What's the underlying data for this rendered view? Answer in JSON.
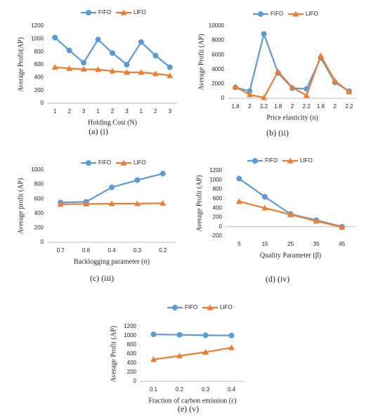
{
  "chart_data": [
    {
      "type": "line",
      "caption": "(a)  (i)",
      "x_label": "Holding Cost (N)",
      "y_label": "Average Profit(AP)",
      "categories": [
        "1",
        "2",
        "3",
        "1",
        "2",
        "3",
        "1",
        "2",
        "3"
      ],
      "series": [
        {
          "name": "FIFO",
          "color": "#5b9bd5",
          "marker": "circle",
          "values": [
            1020,
            820,
            630,
            990,
            780,
            600,
            950,
            740,
            560
          ]
        },
        {
          "name": "LIFO",
          "color": "#ed7d31",
          "marker": "triangle",
          "values": [
            560,
            540,
            530,
            525,
            500,
            480,
            480,
            460,
            430
          ]
        }
      ],
      "ylim": [
        0,
        1200
      ],
      "yticks": [
        0,
        200,
        400,
        600,
        800,
        1000,
        1200
      ],
      "grid": false
    },
    {
      "type": "line",
      "caption": "(b)  (ii)",
      "x_label": "Price elasticity (n)",
      "y_label": "Average Profit (AP)",
      "categories": [
        "1.8",
        "2",
        "2.2",
        "1.8",
        "2",
        "2.2",
        "1.8",
        "2",
        "2.2"
      ],
      "series": [
        {
          "name": "FIFO",
          "color": "#5b9bd5",
          "marker": "circle",
          "values": [
            1500,
            1000,
            8900,
            3500,
            1400,
            1300,
            5600,
            2200,
            1000
          ]
        },
        {
          "name": "LIFO",
          "color": "#ed7d31",
          "marker": "triangle",
          "values": [
            1600,
            500,
            100,
            3700,
            1500,
            400,
            5900,
            2400,
            900
          ]
        }
      ],
      "ylim": [
        0,
        10000
      ],
      "yticks": [
        0,
        2000,
        4000,
        6000,
        8000,
        10000
      ],
      "grid": false
    },
    {
      "type": "line",
      "caption": "(c)  (iii)",
      "x_label": "Backlogging parameter (σ)",
      "y_label": "Average profit (AP)",
      "categories": [
        "0.7",
        "0.6",
        "0.4",
        "0.3",
        "0.2"
      ],
      "series": [
        {
          "name": "FIFO",
          "color": "#5b9bd5",
          "marker": "circle",
          "values": [
            550,
            560,
            760,
            860,
            950
          ]
        },
        {
          "name": "LIFO",
          "color": "#ed7d31",
          "marker": "triangle",
          "values": [
            525,
            530,
            535,
            535,
            540
          ]
        }
      ],
      "ylim": [
        0,
        1000
      ],
      "yticks": [
        0,
        200,
        400,
        600,
        800,
        1000
      ],
      "grid": false
    },
    {
      "type": "line",
      "caption": "(d)  (iv)",
      "x_label": "Quality Parameter (β)",
      "y_label": "Average Profit (AP)",
      "categories": [
        "5",
        "15",
        "25",
        "35",
        "45"
      ],
      "series": [
        {
          "name": "FIFO",
          "color": "#5b9bd5",
          "marker": "circle",
          "values": [
            1030,
            640,
            270,
            140,
            0
          ]
        },
        {
          "name": "LIFO",
          "color": "#ed7d31",
          "marker": "triangle",
          "values": [
            540,
            400,
            260,
            120,
            -10
          ]
        }
      ],
      "ylim": [
        -200,
        1200
      ],
      "yticks": [
        -200,
        0,
        200,
        400,
        600,
        800,
        1000,
        1200
      ],
      "grid": false
    },
    {
      "type": "line",
      "caption": "(e)  (v)",
      "x_label": "Fraction of carbon emission (ε)",
      "y_label": "Average Profit (AP)",
      "categories": [
        "0.1",
        "0.2",
        "0.3",
        "0.4"
      ],
      "series": [
        {
          "name": "FIFO",
          "color": "#5b9bd5",
          "marker": "circle",
          "values": [
            1030,
            1020,
            1010,
            1005
          ]
        },
        {
          "name": "LIFO",
          "color": "#ed7d31",
          "marker": "triangle",
          "values": [
            480,
            560,
            640,
            740
          ]
        }
      ],
      "ylim": [
        0,
        1200
      ],
      "yticks": [
        0,
        200,
        400,
        600,
        800,
        1000,
        1200
      ],
      "grid": false
    }
  ]
}
